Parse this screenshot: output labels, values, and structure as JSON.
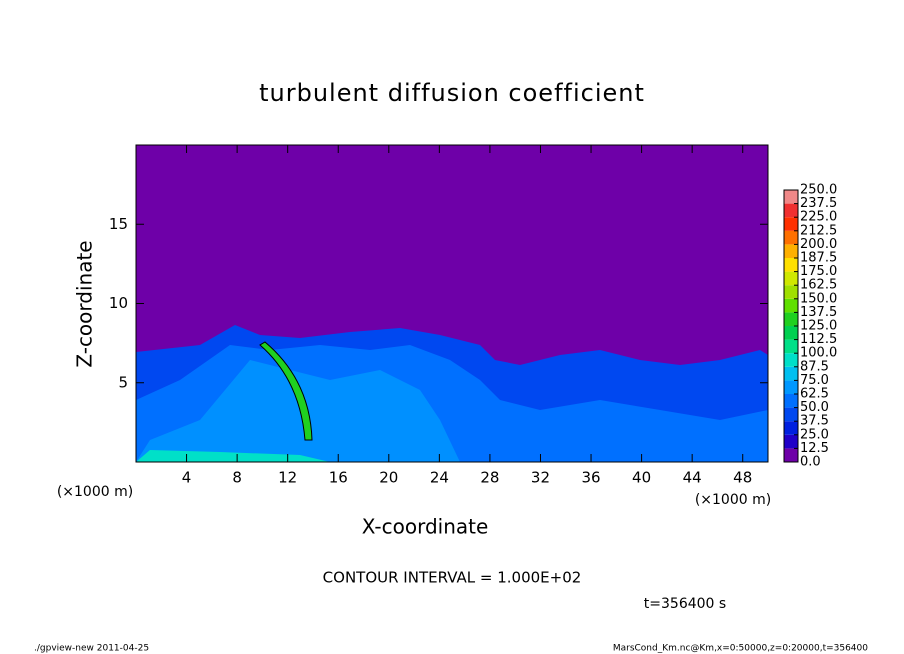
{
  "chart_data": {
    "type": "heatmap",
    "title": "turbulent diffusion coefficient",
    "xlabel": "X-coordinate",
    "ylabel": "Z-coordinate",
    "x_unit": "(×1000 m)",
    "y_unit": "(×1000 m)",
    "xlim": [
      0,
      50
    ],
    "xticks": [
      4,
      8,
      12,
      16,
      20,
      24,
      28,
      32,
      36,
      40,
      44,
      48
    ],
    "ylim": [
      0,
      20
    ],
    "yticks": [
      5,
      10,
      15
    ],
    "colorbar": {
      "levels": [
        {
          "value": 0,
          "label": "0.0"
        },
        {
          "value": 12.5,
          "label": "12.5"
        },
        {
          "value": 25,
          "label": "25.0"
        },
        {
          "value": 37.5,
          "label": "37.5"
        },
        {
          "value": 50,
          "label": "50.0"
        },
        {
          "value": 62.5,
          "label": "62.5"
        },
        {
          "value": 75,
          "label": "75.0"
        },
        {
          "value": 87.5,
          "label": "87.5"
        },
        {
          "value": 100,
          "label": "100.0"
        },
        {
          "value": 112.5,
          "label": "112.5"
        },
        {
          "value": 125,
          "label": "125.0"
        },
        {
          "value": 137.5,
          "label": "137.5"
        },
        {
          "value": 150,
          "label": "150.0"
        },
        {
          "value": 162.5,
          "label": "162.5"
        },
        {
          "value": 175,
          "label": "175.0"
        },
        {
          "value": 187.5,
          "label": "187.5"
        },
        {
          "value": 200,
          "label": "200.0"
        },
        {
          "value": 212.5,
          "label": "212.5"
        },
        {
          "value": 225,
          "label": "225.0"
        },
        {
          "value": 237.5,
          "label": "237.5"
        },
        {
          "value": 250,
          "label": "250.0"
        }
      ],
      "colors": [
        "#6e00a8",
        "#2000c8",
        "#0020e0",
        "#0048f0",
        "#0070ff",
        "#0098ff",
        "#00c0f0",
        "#00e0c8",
        "#00e088",
        "#00d050",
        "#20d020",
        "#60e000",
        "#a0e000",
        "#d0e800",
        "#ffe000",
        "#ffb000",
        "#ff7000",
        "#ff3000",
        "#f03030",
        "#f08888"
      ]
    },
    "contour_note": "CONTOUR INTERVAL = 1.000E+02",
    "time_label": "t=356400 s",
    "footer_left": "./gpview-new  2011-04-25",
    "footer_right": "MarsCond_Km.nc@Km,x=0:50000,z=0:20000,t=356400"
  }
}
